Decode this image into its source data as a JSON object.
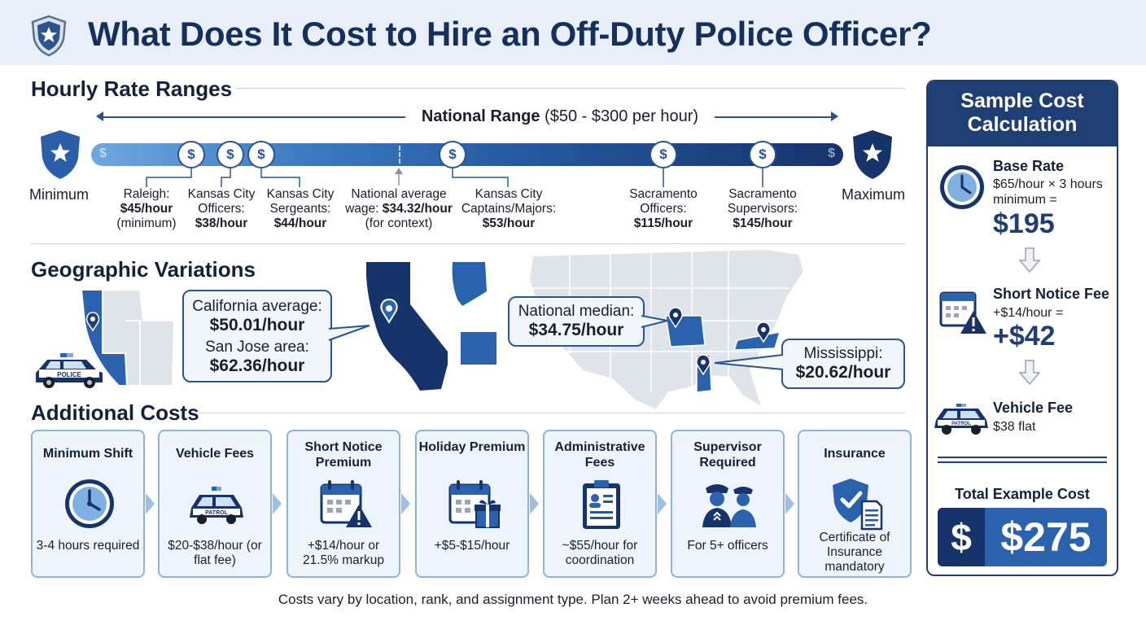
{
  "header": {
    "title": "What Does It Cost to Hire an Off-Duty Police Officer?"
  },
  "hourly": {
    "title": "Hourly Rate Ranges",
    "national_range_bold": "National Range",
    "national_range_rest": " ($50 - $300 per hour)",
    "minimum_label": "Minimum",
    "maximum_label": "Maximum",
    "rates": [
      {
        "line1": "Raleigh:",
        "line2": "$45/hour",
        "line3": "(minimum)"
      },
      {
        "line1": "Kansas City",
        "line2": "Officers:",
        "line3": "$38/hour"
      },
      {
        "line1": "Kansas City",
        "line2": "Sergeants:",
        "line3": "$44/hour"
      },
      {
        "line1": "National average",
        "line2a": "wage: ",
        "line2b": "$34.32/hour",
        "line3": "(for context)"
      },
      {
        "line1": "Kansas City",
        "line2": "Captains/Majors:",
        "line3": "$53/hour"
      },
      {
        "line1": "Sacramento",
        "line2": "Officers:",
        "line3": "$115/hour"
      },
      {
        "line1": "Sacramento",
        "line2": "Supervisors:",
        "line3": "$145/hour"
      }
    ]
  },
  "geo": {
    "title": "Geographic Variations",
    "ca_avg_label": "California average:",
    "ca_avg_value": "$50.01/hour",
    "sj_label": "San Jose area:",
    "sj_value": "$62.36/hour",
    "nat_median_label": "National median:",
    "nat_median_value": "$34.75/hour",
    "ms_label": "Mississippi:",
    "ms_value": "$20.62/hour",
    "car_text": "POLICE"
  },
  "additional": {
    "title": "Additional Costs",
    "cards": [
      {
        "title": "Minimum Shift",
        "desc": "3-4 hours required",
        "icon": "clock-icon"
      },
      {
        "title": "Vehicle Fees",
        "desc": "$20-$38/hour (or flat fee)",
        "icon": "patrol-car-icon"
      },
      {
        "title": "Short Notice Premium",
        "desc": "+$14/hour or 21.5% markup",
        "icon": "calendar-alert-icon"
      },
      {
        "title": "Holiday Premium",
        "desc": "+$5-$15/hour",
        "icon": "calendar-gift-icon"
      },
      {
        "title": "Administrative Fees",
        "desc": "~$55/hour for coordination",
        "icon": "clipboard-icon"
      },
      {
        "title": "Supervisor Required",
        "desc": "For 5+ officers",
        "icon": "officers-icon"
      },
      {
        "title": "Insurance",
        "desc": "Certificate of Insurance mandatory",
        "icon": "shield-check-icon"
      }
    ],
    "car_text": "PATROL"
  },
  "footer": "Costs vary by location, rank, and assignment type. Plan 2+ weeks ahead to avoid premium fees.",
  "sample": {
    "title": "Sample Cost Calculation",
    "base_title": "Base Rate",
    "base_desc1": "$65/hour × 3 hours",
    "base_desc2": "minimum =",
    "base_value": "$195",
    "notice_title": "Short Notice Fee",
    "notice_desc": "+$14/hour =",
    "notice_value": "+$42",
    "vehicle_title": "Vehicle Fee",
    "vehicle_desc": "$38 flat",
    "vehicle_car_text": "PATROL",
    "total_label": "Total Example Cost",
    "total_currency": "$",
    "total_value": "$275"
  },
  "colors": {
    "navy": "#16305e",
    "blue": "#2a5591",
    "light": "#eef4fb",
    "accent": "#2a62ad"
  }
}
